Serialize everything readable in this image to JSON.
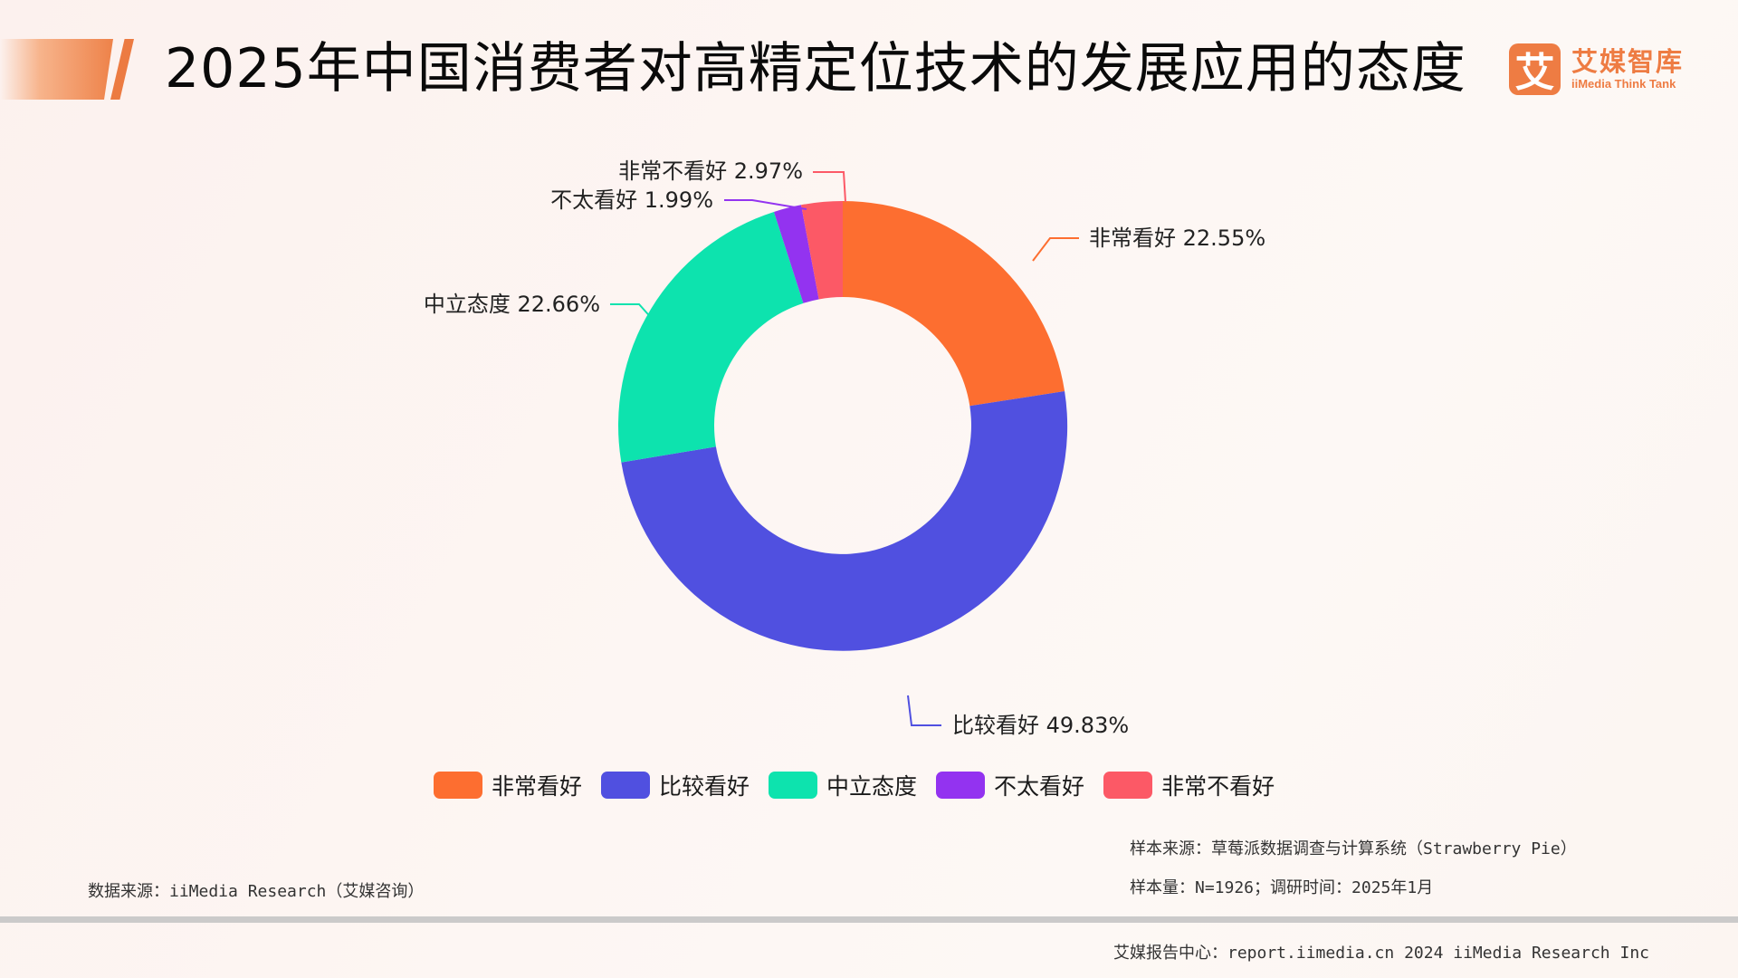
{
  "header": {
    "title": "2025年中国消费者对高精定位技术的发展应用的态度",
    "logo": {
      "mark": "艾",
      "name_cn": "艾媒智库",
      "name_en": "iiMedia Think Tank",
      "color": "#ee7c43"
    }
  },
  "chart_data": {
    "type": "pie",
    "subtype": "donut",
    "title": "2025年中国消费者对高精定位技术的发展应用的态度",
    "unit": "%",
    "categories": [
      "非常看好",
      "比较看好",
      "中立态度",
      "不太看好",
      "非常不看好"
    ],
    "values": [
      22.55,
      49.83,
      22.66,
      1.99,
      2.97
    ],
    "colors": [
      "#fd6e30",
      "#5050e0",
      "#0de3ae",
      "#9333f0",
      "#fc5966"
    ],
    "data_labels": [
      "非常看好 22.55%",
      "比较看好 49.83%",
      "中立态度 22.66%",
      "不太看好 1.99%",
      "非常不看好 2.97%"
    ],
    "start_angle": "12 o'clock, clockwise",
    "legend_position": "bottom"
  },
  "legend": {
    "items": [
      {
        "label": "非常看好",
        "color": "#fd6e30"
      },
      {
        "label": "比较看好",
        "color": "#5050e0"
      },
      {
        "label": "中立态度",
        "color": "#0de3ae"
      },
      {
        "label": "不太看好",
        "color": "#9333f0"
      },
      {
        "label": "非常不看好",
        "color": "#fc5966"
      }
    ]
  },
  "notes": {
    "sample_source": "样本来源：草莓派数据调查与计算系统（Strawberry Pie）",
    "sample_size": "样本量：N=1926；调研时间：2025年1月",
    "data_source": "数据来源：iiMedia Research（艾媒咨询）"
  },
  "footer": {
    "text": "艾媒报告中心：report.iimedia.cn   2024 iiMedia Research Inc"
  }
}
